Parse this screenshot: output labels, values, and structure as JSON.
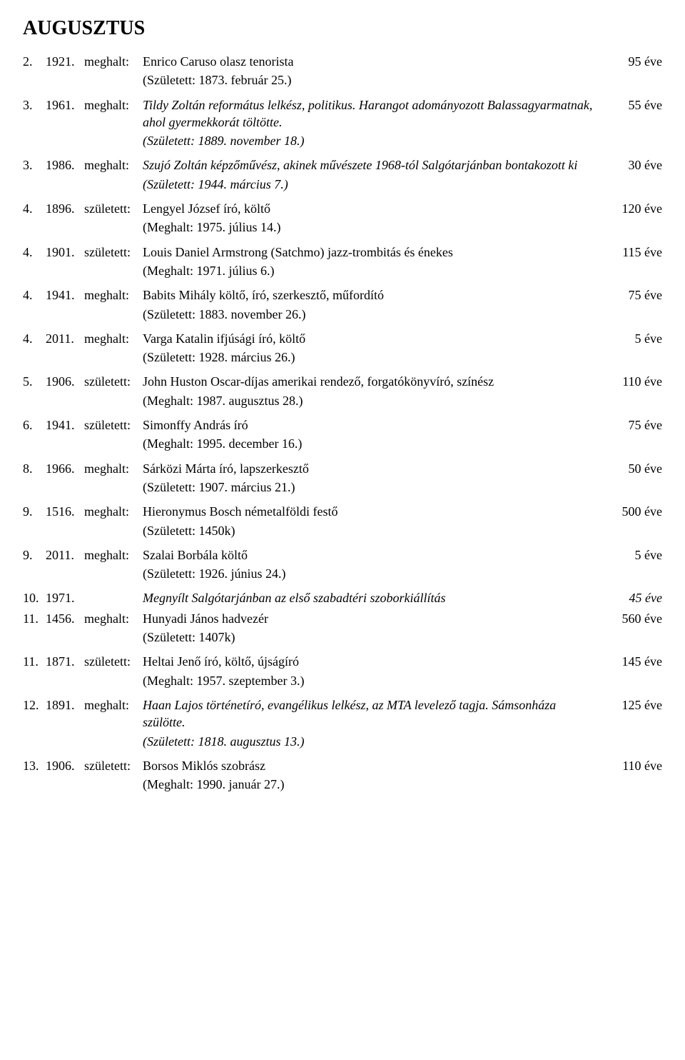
{
  "title": "AUGUSZTUS",
  "entries": [
    {
      "num": "2.",
      "year": "1921.",
      "verb": "meghalt:",
      "desc": "Enrico Caruso olasz tenorista",
      "age": "95 éve",
      "sub": "(Született: 1873. február 25.)"
    },
    {
      "num": "3.",
      "year": "1961.",
      "verb": "meghalt:",
      "desc": "Tildy Zoltán református lelkész, politikus. Harangot adományozott Balassagyarmatnak, ahol gyermekkorát töltötte.",
      "descItalic": true,
      "age": "55 éve",
      "sub": "(Született: 1889. november 18.)",
      "subItalic": true
    },
    {
      "num": "3.",
      "year": "1986.",
      "verb": "meghalt:",
      "desc": "Szujó Zoltán képzőművész, akinek művészete 1968-tól Salgótarjánban bontakozott ki",
      "descItalic": true,
      "age": "30 éve",
      "sub": "(Született: 1944. március 7.)",
      "subItalic": true
    },
    {
      "num": "4.",
      "year": "1896.",
      "verb": "született:",
      "desc": "Lengyel József író, költő",
      "age": "120 éve",
      "sub": "(Meghalt: 1975. július 14.)"
    },
    {
      "num": "4.",
      "year": "1901.",
      "verb": "született:",
      "desc": "Louis Daniel Armstrong (Satchmo) jazz-trombitás és énekes",
      "age": "115 éve",
      "sub": "(Meghalt: 1971. július 6.)"
    },
    {
      "num": "4.",
      "year": "1941.",
      "verb": "meghalt:",
      "desc": "Babits Mihály költő, író, szerkesztő, műfordító",
      "age": "75 éve",
      "sub": "(Született: 1883. november 26.)"
    },
    {
      "num": "4.",
      "year": "2011.",
      "verb": "meghalt:",
      "desc": "Varga Katalin ifjúsági író, költő",
      "age": "5 éve",
      "sub": "(Született: 1928. március 26.)"
    },
    {
      "num": "5.",
      "year": "1906.",
      "verb": "született:",
      "desc": "John Huston Oscar-díjas amerikai rendező, forgatókönyvíró, színész",
      "age": "110 éve",
      "sub": "(Meghalt: 1987. augusztus 28.)"
    },
    {
      "num": "6.",
      "year": "1941.",
      "verb": "született:",
      "desc": "Simonffy András író",
      "age": "75 éve",
      "sub": "(Meghalt: 1995. december 16.)"
    },
    {
      "num": "8.",
      "year": "1966.",
      "verb": "meghalt:",
      "desc": "Sárközi Márta író, lapszerkesztő",
      "age": "50 éve",
      "sub": "(Született: 1907. március 21.)"
    },
    {
      "num": "9.",
      "year": "1516.",
      "verb": "meghalt:",
      "desc": "Hieronymus Bosch németalföldi festő",
      "age": "500 éve",
      "sub": "(Született: 1450k)"
    },
    {
      "num": "9.",
      "year": "2011.",
      "verb": "meghalt:",
      "desc": "Szalai Borbála költő",
      "age": "5 éve",
      "sub": "(Született: 1926. június 24.)"
    },
    {
      "num": "10.",
      "year": "1971.",
      "verb": "",
      "desc": "Megnyílt Salgótarjánban az első szabadtéri szoborkiállítás",
      "descItalic": true,
      "age": "45 éve",
      "ageItalic": true
    },
    {
      "num": "11.",
      "year": "1456.",
      "verb": "meghalt:",
      "desc": "Hunyadi János hadvezér",
      "age": "560 éve",
      "sub": "(Született: 1407k)"
    },
    {
      "num": "11.",
      "year": "1871.",
      "verb": "született:",
      "desc": "Heltai Jenő író, költő, újságíró",
      "age": "145 éve",
      "sub": "(Meghalt: 1957. szeptember 3.)"
    },
    {
      "num": "12.",
      "year": "1891.",
      "verb": "meghalt:",
      "desc": "Haan Lajos történetíró, evangélikus lelkész, az MTA levelező tagja. Sámsonháza szülötte.",
      "descItalic": true,
      "age": "125 éve",
      "sub": "(Született: 1818. augusztus 13.)",
      "subItalic": true
    },
    {
      "num": "13.",
      "year": "1906.",
      "verb": "született:",
      "desc": "Borsos Miklós szobrász",
      "age": "110 éve",
      "sub": "(Meghalt: 1990. január 27.)"
    }
  ]
}
